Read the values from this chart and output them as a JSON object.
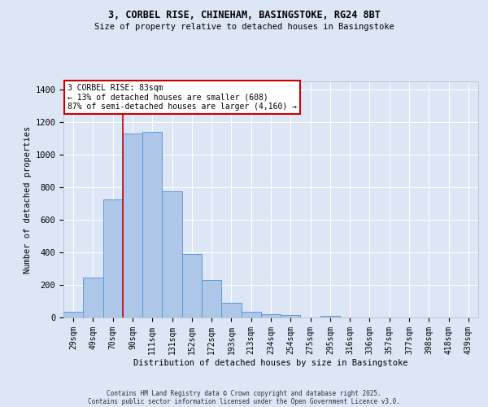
{
  "title1": "3, CORBEL RISE, CHINEHAM, BASINGSTOKE, RG24 8BT",
  "title2": "Size of property relative to detached houses in Basingstoke",
  "xlabel": "Distribution of detached houses by size in Basingstoke",
  "ylabel": "Number of detached properties",
  "categories": [
    "29sqm",
    "49sqm",
    "70sqm",
    "90sqm",
    "111sqm",
    "131sqm",
    "152sqm",
    "172sqm",
    "193sqm",
    "213sqm",
    "234sqm",
    "254sqm",
    "275sqm",
    "295sqm",
    "316sqm",
    "336sqm",
    "357sqm",
    "377sqm",
    "398sqm",
    "418sqm",
    "439sqm"
  ],
  "values": [
    35,
    247,
    724,
    1130,
    1140,
    775,
    390,
    230,
    88,
    33,
    22,
    15,
    0,
    12,
    0,
    0,
    0,
    0,
    0,
    0,
    0
  ],
  "bar_color": "#aec6e8",
  "bar_edge_color": "#5b9bd5",
  "bg_color": "#dce6f5",
  "grid_color": "#ffffff",
  "vline_x_index": 2.5,
  "vline_color": "#cc0000",
  "annotation_text": "3 CORBEL RISE: 83sqm\n← 13% of detached houses are smaller (608)\n87% of semi-detached houses are larger (4,160) →",
  "annotation_box_color": "#cc0000",
  "ylim": [
    0,
    1450
  ],
  "yticks": [
    0,
    200,
    400,
    600,
    800,
    1000,
    1200,
    1400
  ],
  "footer1": "Contains HM Land Registry data © Crown copyright and database right 2025.",
  "footer2": "Contains public sector information licensed under the Open Government Licence v3.0."
}
